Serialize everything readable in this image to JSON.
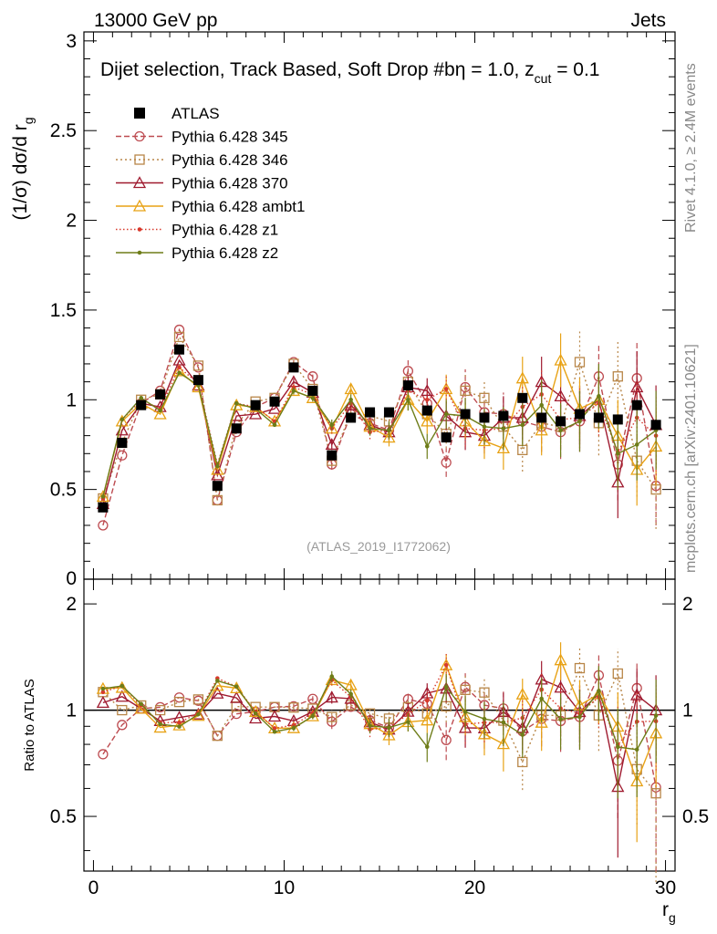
{
  "header": {
    "energy": "13000 GeV pp",
    "process": "Jets"
  },
  "side_labels": {
    "rivet": "Rivet 4.1.0, ≥ 2.4M events",
    "mcplots": "mcplots.cern.ch [arXiv:2401.10621]"
  },
  "watermark": "(ATLAS_2019_I1772062)",
  "chart_data": {
    "type": "line",
    "title_parts": {
      "main": "Dijet selection, Track Based, Soft Drop #b",
      "eta": "η = 1.0, z",
      "sub": "cut",
      "tail": " = 0.1"
    },
    "ylabel_main": {
      "prefix": "(1/σ) dσ/d r",
      "sub": "g"
    },
    "ylabel_ratio": "Ratio to ATLAS",
    "xlabel": {
      "main": "r",
      "sub": "g"
    },
    "xlim": [
      -0.5,
      30.5
    ],
    "ylim_main": [
      0,
      3.05
    ],
    "ylim_ratio": [
      0.35,
      2.35
    ],
    "xticks": [
      "0",
      "10",
      "20",
      "30"
    ],
    "yticks_main": [
      "0.5",
      "1",
      "1.5",
      "2",
      "2.5",
      "3"
    ],
    "yticks_ratio": [
      "0.5",
      "1",
      "2"
    ],
    "x": [
      0.5,
      1.5,
      2.5,
      3.5,
      4.5,
      5.5,
      6.5,
      7.5,
      8.5,
      9.5,
      10.5,
      11.5,
      12.5,
      13.5,
      14.5,
      15.5,
      16.5,
      17.5,
      18.5,
      19.5,
      20.5,
      21.5,
      22.5,
      23.5,
      24.5,
      25.5,
      26.5,
      27.5,
      28.5,
      29.5
    ],
    "data": {
      "name": "ATLAS",
      "values": [
        0.4,
        0.76,
        0.97,
        1.03,
        1.28,
        1.11,
        0.52,
        0.84,
        0.97,
        0.99,
        1.18,
        1.05,
        0.69,
        0.9,
        0.93,
        0.93,
        1.08,
        0.94,
        0.79,
        0.92,
        0.9,
        0.91,
        1.01,
        0.9,
        0.88,
        0.92,
        0.9,
        0.89,
        0.97,
        0.86
      ]
    },
    "series": [
      {
        "name": "Pythia 6.428 345",
        "color": "#bd4b50",
        "dash": "6,3",
        "marker": "circle",
        "values": [
          0.3,
          0.69,
          0.98,
          1.05,
          1.39,
          1.18,
          0.44,
          0.82,
          0.96,
          1.01,
          1.21,
          1.13,
          0.64,
          0.92,
          0.87,
          0.83,
          1.16,
          0.98,
          0.65,
          1.07,
          0.93,
          0.92,
          0.88,
          0.85,
          0.82,
          0.88,
          1.13,
          0.64,
          1.12,
          0.52
        ],
        "errors": [
          0.01,
          0.01,
          0.01,
          0.01,
          0.01,
          0.01,
          0.01,
          0.01,
          0.01,
          0.01,
          0.02,
          0.02,
          0.03,
          0.03,
          0.04,
          0.05,
          0.06,
          0.07,
          0.08,
          0.1,
          0.1,
          0.12,
          0.12,
          0.14,
          0.15,
          0.17,
          0.18,
          0.2,
          0.2,
          0.22
        ]
      },
      {
        "name": "Pythia 6.428 346",
        "color": "#b88648",
        "dash": "2,3",
        "marker": "square",
        "values": [
          0.45,
          0.76,
          1.0,
          1.03,
          1.35,
          1.19,
          0.44,
          0.86,
          0.99,
          1.01,
          1.2,
          1.06,
          0.66,
          0.93,
          0.91,
          0.88,
          1.1,
          0.92,
          0.81,
          1.05,
          1.01,
          0.85,
          0.72,
          0.87,
          0.85,
          1.21,
          0.87,
          1.13,
          0.66,
          0.5
        ],
        "errors": [
          0.01,
          0.01,
          0.01,
          0.01,
          0.01,
          0.01,
          0.01,
          0.01,
          0.01,
          0.01,
          0.02,
          0.02,
          0.03,
          0.03,
          0.04,
          0.05,
          0.06,
          0.07,
          0.08,
          0.1,
          0.1,
          0.12,
          0.12,
          0.14,
          0.15,
          0.17,
          0.18,
          0.2,
          0.2,
          0.22
        ]
      },
      {
        "name": "Pythia 6.428 370",
        "color": "#9f1a2f",
        "dash": "",
        "marker": "triangle",
        "values": [
          0.42,
          0.83,
          0.98,
          0.96,
          1.22,
          1.08,
          0.58,
          0.91,
          0.92,
          0.95,
          1.1,
          1.04,
          0.75,
          0.97,
          0.86,
          0.82,
          1.07,
          1.05,
          0.91,
          0.82,
          0.8,
          0.9,
          0.9,
          1.1,
          1.02,
          0.91,
          1.0,
          0.54,
          1.07,
          0.86
        ],
        "errors": [
          0.01,
          0.01,
          0.01,
          0.01,
          0.01,
          0.01,
          0.01,
          0.01,
          0.01,
          0.01,
          0.02,
          0.02,
          0.03,
          0.03,
          0.04,
          0.05,
          0.06,
          0.07,
          0.08,
          0.1,
          0.1,
          0.12,
          0.12,
          0.14,
          0.15,
          0.17,
          0.18,
          0.2,
          0.2,
          0.22
        ]
      },
      {
        "name": "Pythia 6.428 ambt1",
        "color": "#e8a215",
        "dash": "",
        "marker": "triangle",
        "values": [
          0.46,
          0.88,
          0.98,
          0.92,
          1.16,
          1.07,
          0.61,
          0.97,
          0.96,
          0.88,
          1.05,
          1.01,
          0.84,
          1.06,
          0.85,
          0.79,
          1.0,
          0.88,
          1.06,
          0.88,
          0.77,
          0.73,
          1.12,
          0.83,
          1.22,
          0.95,
          1.0,
          0.8,
          0.61,
          0.74
        ],
        "errors": [
          0.01,
          0.01,
          0.01,
          0.01,
          0.01,
          0.01,
          0.01,
          0.01,
          0.01,
          0.01,
          0.02,
          0.02,
          0.03,
          0.03,
          0.04,
          0.05,
          0.06,
          0.07,
          0.08,
          0.1,
          0.1,
          0.12,
          0.12,
          0.14,
          0.15,
          0.17,
          0.18,
          0.2,
          0.2,
          0.22
        ]
      },
      {
        "name": "Pythia 6.428 z1",
        "color": "#d83a2c",
        "dash": "1.5,2.5",
        "marker": "dot",
        "values": [
          0.45,
          0.89,
          1.0,
          0.95,
          1.18,
          1.09,
          0.64,
          0.98,
          0.96,
          0.88,
          1.07,
          1.03,
          0.84,
          0.98,
          0.82,
          0.83,
          1.05,
          1.0,
          1.06,
          0.84,
          0.83,
          0.84,
          0.96,
          1.03,
          0.89,
          0.9,
          0.98,
          0.71,
          0.9,
          0.8
        ],
        "errors": [
          0.01,
          0.01,
          0.01,
          0.01,
          0.01,
          0.01,
          0.01,
          0.01,
          0.01,
          0.01,
          0.02,
          0.02,
          0.03,
          0.03,
          0.04,
          0.05,
          0.06,
          0.07,
          0.08,
          0.1,
          0.1,
          0.12,
          0.12,
          0.14,
          0.15,
          0.17,
          0.18,
          0.2,
          0.2,
          0.22
        ]
      },
      {
        "name": "Pythia 6.428 z2",
        "color": "#6e7d19",
        "dash": "",
        "marker": "dot",
        "values": [
          0.46,
          0.89,
          1.01,
          0.94,
          1.15,
          1.08,
          0.63,
          0.98,
          0.95,
          0.86,
          1.05,
          1.01,
          0.86,
          1.0,
          0.84,
          0.83,
          1.0,
          0.74,
          0.92,
          0.91,
          0.85,
          0.84,
          0.86,
          0.97,
          0.83,
          0.88,
          1.02,
          0.7,
          0.75,
          0.83
        ],
        "errors": [
          0.01,
          0.01,
          0.01,
          0.01,
          0.01,
          0.01,
          0.01,
          0.01,
          0.01,
          0.01,
          0.02,
          0.02,
          0.03,
          0.03,
          0.04,
          0.05,
          0.06,
          0.07,
          0.08,
          0.1,
          0.1,
          0.12,
          0.12,
          0.14,
          0.15,
          0.17,
          0.18,
          0.2,
          0.2,
          0.22
        ]
      }
    ]
  }
}
